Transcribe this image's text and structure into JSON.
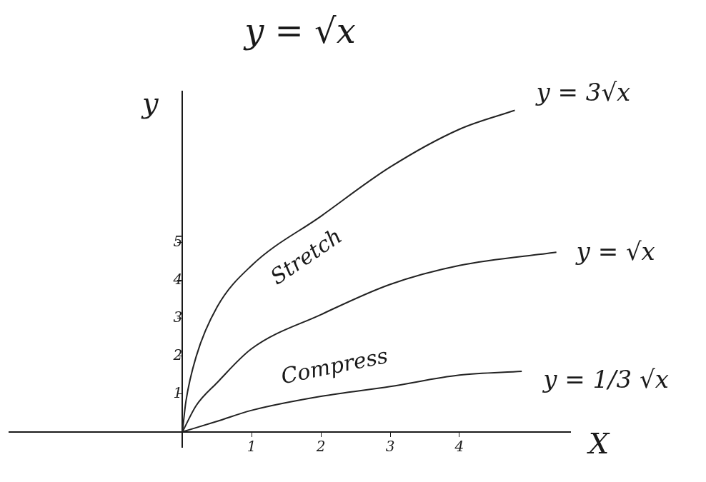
{
  "chart_data": {
    "type": "line",
    "title": "y = √x",
    "x_label": "X",
    "y_label": "y",
    "xlim": [
      -2.5,
      5.6
    ],
    "ylim": [
      -0.4,
      9
    ],
    "xticks": [
      1,
      2,
      3,
      4
    ],
    "yticks": [
      1,
      2,
      3,
      4,
      5
    ],
    "grid": false,
    "series": [
      {
        "name": "y = 3√x",
        "color": "#222222",
        "line_style": "solid",
        "x": [
          0,
          0.05,
          0.2,
          0.5,
          1,
          2,
          3,
          4,
          4.8
        ],
        "values": [
          0,
          0.8,
          2.0,
          3.3,
          4.4,
          5.7,
          7.0,
          8.0,
          8.5
        ]
      },
      {
        "name": "y = √x",
        "color": "#222222",
        "line_style": "solid",
        "x": [
          0,
          0.2,
          0.5,
          1,
          2,
          3,
          4,
          5.4
        ],
        "values": [
          0,
          0.7,
          1.3,
          2.2,
          3.1,
          3.9,
          4.4,
          4.75
        ]
      },
      {
        "name": "y = 1/3 √x",
        "color": "#222222",
        "line_style": "solid",
        "x": [
          0,
          0.5,
          1,
          2,
          3,
          4,
          4.9
        ],
        "values": [
          0,
          0.28,
          0.57,
          0.94,
          1.2,
          1.5,
          1.6
        ]
      }
    ],
    "annotations": [
      {
        "text": "Stretch",
        "x": 1.8,
        "y": 4.6
      },
      {
        "text": "Compress",
        "x": 2.2,
        "y": 1.7
      }
    ]
  }
}
